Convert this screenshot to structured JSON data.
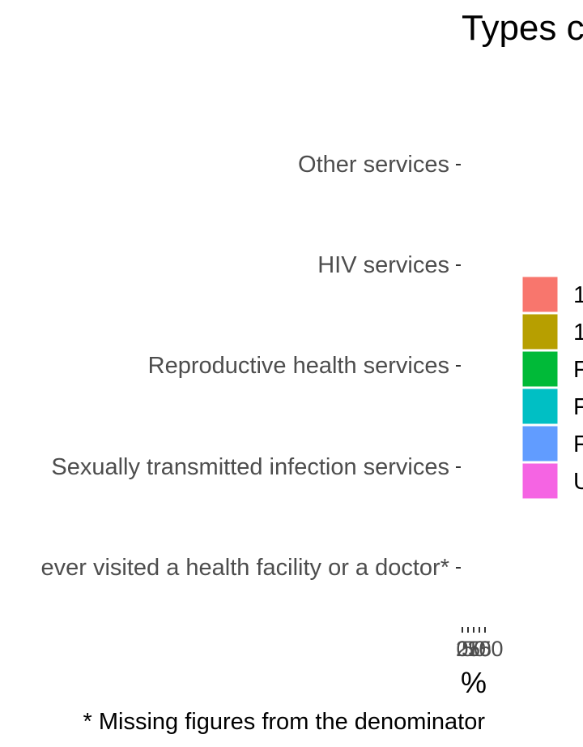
{
  "chart_data": {
    "type": "bar",
    "orientation": "horizontal",
    "stacked": true,
    "title": "Types c",
    "xlabel": "%",
    "ylabel": "",
    "caption": "* Missing figures from the denominator",
    "categories": [
      "Other services",
      "HIV services",
      "Reproductive health services",
      "Sexually transmitted infection services",
      "ever visited a health facility or a doctor*"
    ],
    "x_tick_labels": [
      "0",
      "25",
      "50",
      "75",
      "100"
    ],
    "xlim": [
      0,
      100
    ],
    "legend": {
      "position": "right",
      "entries": [
        {
          "label": "1",
          "color": "#F8766D"
        },
        {
          "label": "1",
          "color": "#B79F00"
        },
        {
          "label": "F",
          "color": "#00BA38"
        },
        {
          "label": "F",
          "color": "#00BFC4"
        },
        {
          "label": "F",
          "color": "#619CFF"
        },
        {
          "label": "U",
          "color": "#F564E3"
        }
      ]
    },
    "grid": false
  }
}
